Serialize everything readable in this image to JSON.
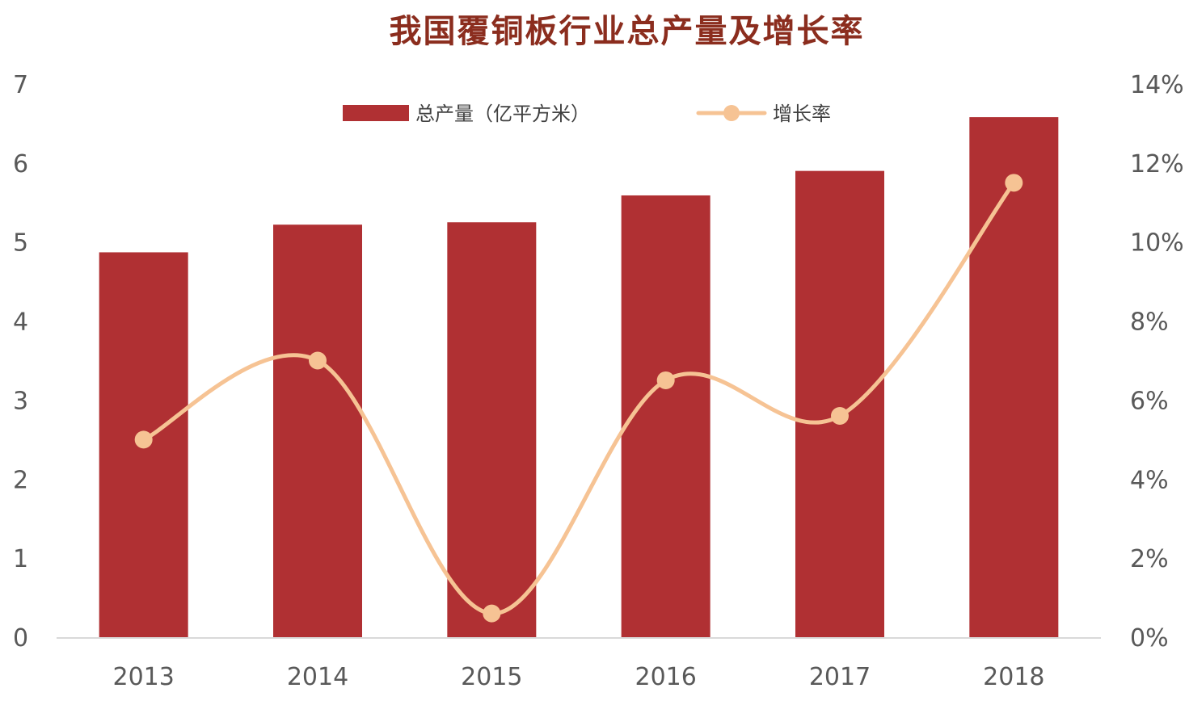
{
  "colors": {
    "title": "#8B2D1E",
    "bar": "#B03033",
    "line": "#F6C394",
    "axis": "#D9D9D9",
    "tick": "#595959"
  },
  "chart_data": {
    "type": "bar+line",
    "title": "我国覆铜板行业总产量及增长率",
    "categories": [
      "2013",
      "2014",
      "2015",
      "2016",
      "2017",
      "2018"
    ],
    "series": [
      {
        "name": "总产量（亿平方米）",
        "type": "bar",
        "axis": "left",
        "values": [
          4.87,
          5.22,
          5.25,
          5.59,
          5.9,
          6.58
        ]
      },
      {
        "name": "增长率",
        "type": "line",
        "axis": "right",
        "values": [
          0.05,
          0.07,
          0.006,
          0.065,
          0.056,
          0.115
        ]
      }
    ],
    "y_left": {
      "lim": [
        0,
        7
      ],
      "ticks": [
        "0",
        "1",
        "2",
        "3",
        "4",
        "5",
        "6",
        "7"
      ]
    },
    "y_right": {
      "lim": [
        0,
        0.14
      ],
      "ticks": [
        "0%",
        "2%",
        "4%",
        "6%",
        "8%",
        "10%",
        "12%",
        "14%"
      ]
    },
    "grid": false,
    "legend_position": "top-center"
  }
}
